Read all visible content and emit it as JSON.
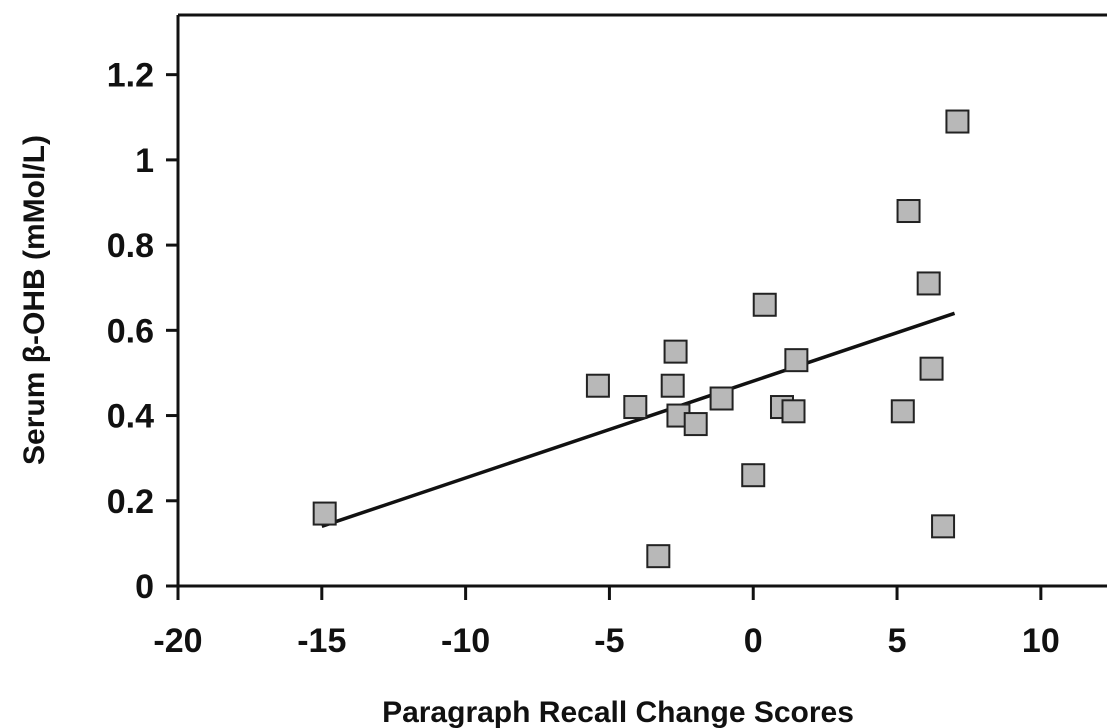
{
  "chart_data": {
    "type": "scatter",
    "xlabel": "Paragraph Recall Change Scores",
    "ylabel": "Serum β-OHB (mMol/L)",
    "xlim": [
      -20,
      12.3
    ],
    "ylim": [
      0,
      1.34
    ],
    "xticks": [
      -20,
      -15,
      -10,
      -5,
      0,
      5,
      10
    ],
    "yticks": [
      0,
      0.2,
      0.4,
      0.6,
      0.8,
      1,
      1.2
    ],
    "xtick_labels": [
      "-20",
      "-15",
      "-10",
      "-5",
      "0",
      "5",
      "10"
    ],
    "ytick_labels": [
      "0",
      "0.2",
      "0.4",
      "0.6",
      "0.8",
      "1",
      "1.2"
    ],
    "marker": "square",
    "marker_color": "#b8b8b8",
    "line_color": "#111111",
    "points": [
      {
        "x": -14.9,
        "y": 0.17
      },
      {
        "x": -5.4,
        "y": 0.47
      },
      {
        "x": -4.1,
        "y": 0.42
      },
      {
        "x": -3.3,
        "y": 0.07
      },
      {
        "x": -2.8,
        "y": 0.47
      },
      {
        "x": -2.7,
        "y": 0.55
      },
      {
        "x": -2.6,
        "y": 0.4
      },
      {
        "x": -2.0,
        "y": 0.38
      },
      {
        "x": -1.1,
        "y": 0.44
      },
      {
        "x": 0.0,
        "y": 0.26
      },
      {
        "x": 0.4,
        "y": 0.66
      },
      {
        "x": 1.0,
        "y": 0.42
      },
      {
        "x": 1.4,
        "y": 0.41
      },
      {
        "x": 1.5,
        "y": 0.53
      },
      {
        "x": 5.2,
        "y": 0.41
      },
      {
        "x": 5.4,
        "y": 0.88
      },
      {
        "x": 6.1,
        "y": 0.71
      },
      {
        "x": 6.2,
        "y": 0.51
      },
      {
        "x": 6.6,
        "y": 0.14
      },
      {
        "x": 7.1,
        "y": 1.09
      }
    ],
    "trendline": {
      "x": [
        -15,
        7
      ],
      "y": [
        0.14,
        0.64
      ]
    }
  }
}
